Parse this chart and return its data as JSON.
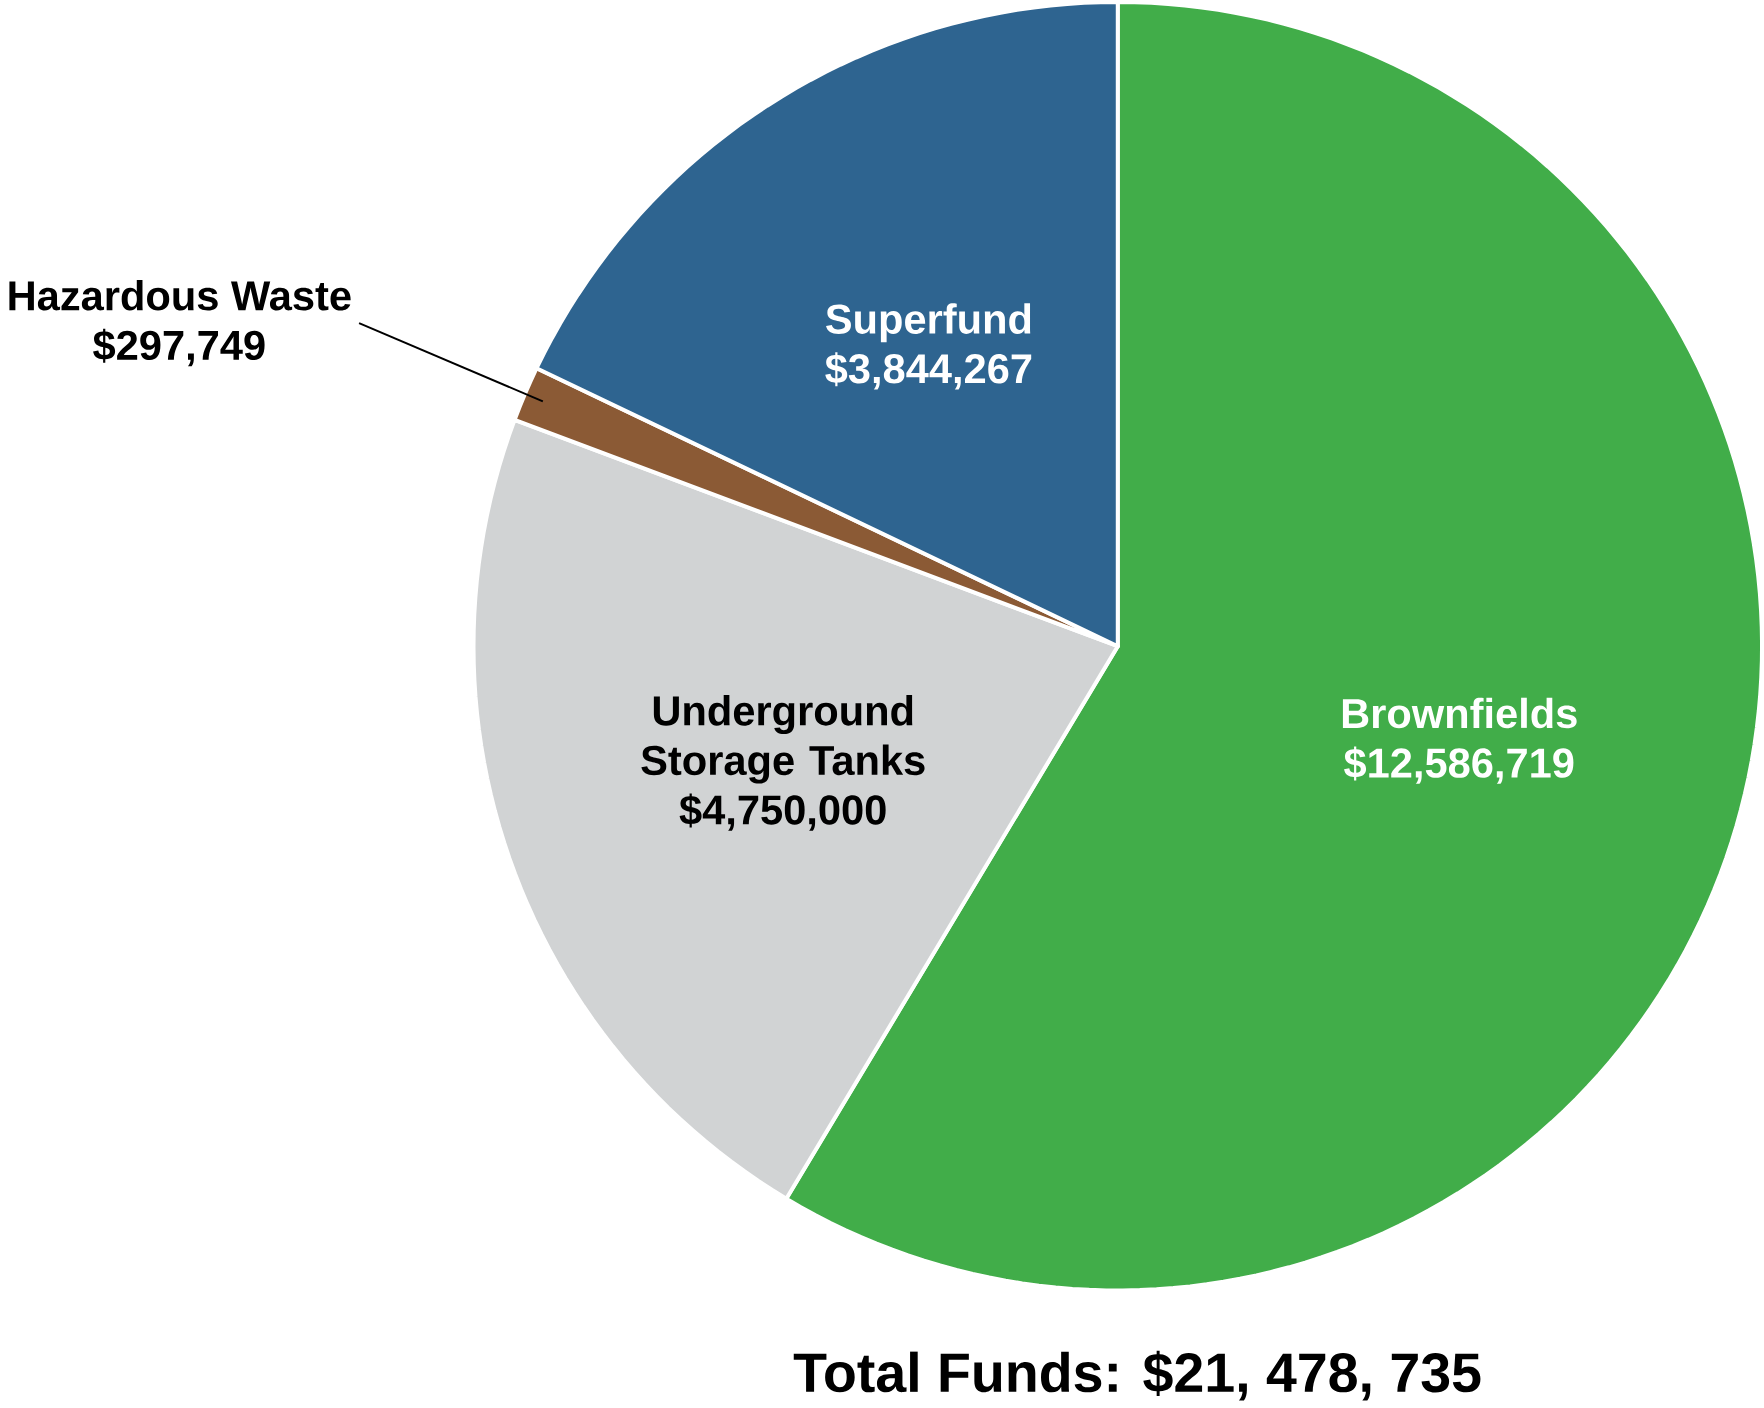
{
  "chart_data": {
    "type": "pie",
    "categories": [
      "Brownfields",
      "Underground Storage Tanks",
      "Hazardous Waste",
      "Superfund"
    ],
    "values": [
      12586719,
      4750000,
      297749,
      3844267
    ],
    "colors": [
      "#41ad49",
      "#d1d3d4",
      "#8b5a35",
      "#2e6490"
    ],
    "value_labels": [
      "$12,586,719",
      "$4,750,000",
      "$297,749",
      "$3,844,267"
    ],
    "annotations": [
      "Total Funds: $21, 478, 735"
    ]
  }
}
